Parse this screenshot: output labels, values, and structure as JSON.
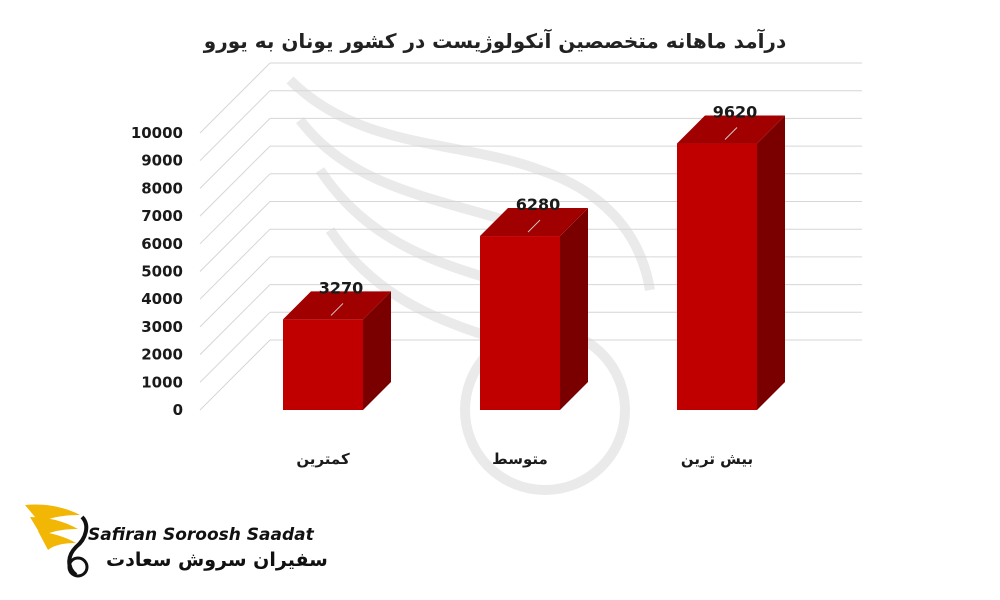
{
  "chart_data": {
    "type": "bar",
    "title": "درآمد ماهانه متخصصین آنکولوژیست در کشور یونان به یورو",
    "categories": [
      "کمترین",
      "متوسط",
      "بیش ترین"
    ],
    "values": [
      3270,
      6280,
      9620
    ],
    "ylim": [
      0,
      10000
    ],
    "yticks": [
      0,
      1000,
      2000,
      3000,
      4000,
      5000,
      6000,
      7000,
      8000,
      9000,
      10000
    ],
    "grid": true,
    "bar_color": "#c00000",
    "bar_side_color": "#7a0000",
    "bar_top_color": "#a00000"
  },
  "logo": {
    "english": "Safiran Soroosh Saadat",
    "persian": "سفیران سروش سعادت",
    "accent": "#f2b705"
  }
}
